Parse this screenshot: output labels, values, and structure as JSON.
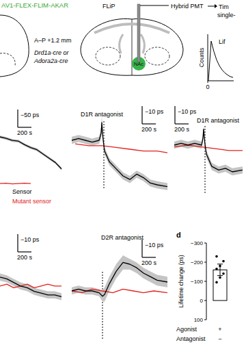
{
  "panel_a": {
    "virus": "AV1-FLEX-FLIM-AKAR",
    "coordinate": "A–P +1.2 mm",
    "mouse_lines": [
      "Drd1a-cre or",
      "Adora2a-cre"
    ],
    "method": "FLiP",
    "detector": "Hybrid PMT",
    "readout": [
      "Tim",
      "single-"
    ],
    "region": "NAc",
    "histogram_title": "Lif",
    "histogram_ylabel": "Counts",
    "histogram_xtick": 0,
    "histogram_counts": [
      0,
      95,
      70,
      50,
      36,
      26,
      19,
      14,
      10,
      8
    ]
  },
  "legend": [
    {
      "name": "Sensor",
      "color": "#000000"
    },
    {
      "name": "Mutant sensor",
      "color": "#e3211c"
    }
  ],
  "trace_panels": [
    {
      "y_scale": {
        "value": -50,
        "label": "−50 ps"
      },
      "x_scale": {
        "value": 200,
        "label": "200 s"
      },
      "series": [
        {
          "x": [
            0,
            90,
            180,
            270,
            360,
            450,
            540,
            630,
            720,
            810,
            900
          ],
          "values": [
            0,
            -4,
            -10,
            -12,
            -22,
            -30,
            -36,
            -48,
            -60,
            -72,
            -90
          ],
          "error": [
            4,
            4,
            4,
            4,
            4,
            4,
            4,
            4,
            4,
            4,
            4
          ]
        },
        {
          "x": [
            0,
            90,
            180,
            270,
            360,
            450
          ],
          "values": [
            -131,
            -130,
            -132,
            -131,
            -130,
            -131
          ]
        }
      ]
    },
    {
      "title": "D1R antagonist",
      "y_scale": {
        "value": -10,
        "label": "−10 ps"
      },
      "x_scale": {
        "value": 200,
        "label": "200 s"
      },
      "antagonist_time": 470,
      "series": [
        {
          "x": [
            0,
            100,
            200,
            300,
            400,
            430,
            440,
            455,
            480,
            550,
            650,
            750,
            850,
            950,
            1050,
            1150,
            1250,
            1400
          ],
          "values": [
            0,
            1,
            0,
            -1,
            0,
            4,
            10,
            2,
            -6,
            -12,
            -16,
            -20,
            -22,
            -19,
            -21,
            -24,
            -25,
            -26
          ],
          "error": [
            2,
            2,
            2,
            2,
            2,
            3,
            4,
            3,
            2,
            2,
            2,
            2,
            2,
            2,
            2,
            2,
            2,
            2
          ]
        },
        {
          "x": [
            50,
            250,
            450,
            650,
            850,
            1050,
            1250,
            1400
          ],
          "values": [
            -2,
            -3,
            -3,
            -4,
            -5,
            -6,
            -6,
            -7
          ]
        }
      ]
    },
    {
      "title": "D1R antagonist",
      "y_scale": {
        "value": -10,
        "label": "−10 ps"
      },
      "x_scale": {
        "value": 200,
        "label": "200 s"
      },
      "antagonist_time": 450,
      "series": [
        {
          "x": [
            0,
            100,
            200,
            300,
            400,
            420,
            430,
            445,
            470,
            550,
            650,
            750,
            850,
            1000
          ],
          "values": [
            0,
            1,
            0,
            1,
            0,
            4,
            9,
            2,
            -5,
            -12,
            -14,
            -13,
            -15,
            -14
          ],
          "error": [
            2,
            2,
            2,
            2,
            2,
            2,
            2,
            2,
            2,
            2,
            2,
            2,
            2,
            2
          ]
        },
        {
          "x": [
            0,
            200,
            400,
            600,
            800,
            1000
          ],
          "values": [
            -1,
            0,
            -1,
            -2,
            -3,
            -3
          ]
        }
      ]
    },
    {
      "y_scale": {
        "value": -10,
        "label": "−10 ps"
      },
      "x_scale": {
        "value": 200,
        "label": "200 s"
      },
      "series": [
        {
          "x": [
            0,
            100,
            200,
            300,
            400,
            500,
            600,
            700,
            800,
            900
          ],
          "values": [
            2,
            1,
            -1,
            -3,
            -4,
            -6,
            -7,
            -8,
            -8,
            -9
          ],
          "error": [
            2,
            2,
            2,
            2,
            2,
            2,
            2,
            2,
            2,
            2
          ]
        },
        {
          "x": [
            0,
            100,
            200,
            300,
            400,
            500,
            600,
            700,
            800,
            900
          ],
          "values": [
            -3,
            -2,
            -4,
            -3,
            -2,
            -4,
            -3,
            -2,
            -3,
            -3
          ]
        }
      ]
    },
    {
      "title": "D2R antagonist",
      "y_scale": {
        "value": -10,
        "label": "−10 ps"
      },
      "x_scale": {
        "value": 200,
        "label": "200 s"
      },
      "antagonist_time": 450,
      "series": [
        {
          "x": [
            0,
            100,
            200,
            300,
            400,
            450,
            480,
            550,
            650,
            750,
            850,
            950,
            1050,
            1150,
            1250,
            1400
          ],
          "values": [
            0,
            1,
            0,
            0,
            -1,
            -3,
            -2,
            4,
            11,
            16,
            15,
            13,
            10,
            8,
            6,
            5
          ],
          "error": [
            2,
            2,
            2,
            2,
            2,
            3,
            4,
            4,
            4,
            4,
            3,
            3,
            3,
            3,
            3,
            3
          ]
        },
        {
          "x": [
            0,
            150,
            300,
            450,
            600,
            750,
            900,
            1050,
            1200,
            1400
          ],
          "values": [
            0,
            -1,
            1,
            0,
            -1,
            1,
            0,
            -1,
            0,
            -1
          ]
        }
      ]
    }
  ],
  "chart_data": {
    "type": "bar",
    "panel_label": "d",
    "ylabel": "Lifetime change (ps)",
    "categories": [
      null
    ],
    "values": [
      -160
    ],
    "errors": [
      30
    ],
    "points": [
      [
        -95,
        -120,
        -140,
        -165,
        -180,
        -205,
        -230
      ]
    ],
    "color": "#ffffff",
    "conditions": [
      {
        "name": "Agonist",
        "values": [
          "+"
        ]
      },
      {
        "name": "Antagonist",
        "values": [
          "−"
        ]
      }
    ],
    "ylim": [
      100,
      -300
    ],
    "yticks": [
      {
        "value": -300,
        "label": "−300"
      },
      {
        "value": -200,
        "label": "−200"
      },
      {
        "value": -100,
        "label": "−100"
      },
      0,
      100
    ]
  }
}
